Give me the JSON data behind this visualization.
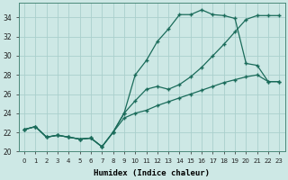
{
  "xlabel": "Humidex (Indice chaleur)",
  "ylabel": "",
  "xlim": [
    -0.5,
    23.5
  ],
  "ylim": [
    20,
    35
  ],
  "xticks": [
    0,
    1,
    2,
    3,
    4,
    5,
    6,
    7,
    8,
    9,
    10,
    11,
    12,
    13,
    14,
    15,
    16,
    17,
    18,
    19,
    20,
    21,
    22,
    23
  ],
  "yticks": [
    20,
    22,
    24,
    26,
    28,
    30,
    32,
    34
  ],
  "background_color": "#cde8e5",
  "grid_color": "#aacfcc",
  "line_color": "#1a6b5a",
  "line1_x": [
    0,
    1,
    2,
    3,
    4,
    5,
    6,
    7,
    8,
    9,
    10,
    11,
    12,
    13,
    14,
    15,
    16,
    17,
    18,
    19,
    20,
    21,
    22,
    23
  ],
  "line1_y": [
    22.3,
    22.6,
    21.5,
    21.7,
    21.5,
    21.3,
    21.4,
    20.5,
    22.0,
    24.0,
    28.0,
    29.5,
    31.5,
    32.8,
    34.3,
    34.3,
    34.8,
    34.3,
    34.2,
    33.9,
    29.2,
    29.0,
    27.3,
    27.3
  ],
  "line2_x": [
    0,
    1,
    2,
    3,
    4,
    5,
    6,
    7,
    8,
    9,
    10,
    11,
    12,
    13,
    14,
    15,
    16,
    17,
    18,
    19,
    20,
    21,
    22,
    23
  ],
  "line2_y": [
    22.3,
    22.6,
    21.5,
    21.7,
    21.5,
    21.3,
    21.4,
    20.5,
    22.0,
    24.0,
    25.3,
    26.5,
    26.8,
    26.5,
    27.0,
    27.8,
    28.8,
    30.0,
    31.2,
    32.5,
    33.8,
    34.2,
    34.2,
    34.2
  ],
  "line3_x": [
    0,
    1,
    2,
    3,
    4,
    5,
    6,
    7,
    8,
    9,
    10,
    11,
    12,
    13,
    14,
    15,
    16,
    17,
    18,
    19,
    20,
    21,
    22,
    23
  ],
  "line3_y": [
    22.3,
    22.6,
    21.5,
    21.7,
    21.5,
    21.3,
    21.4,
    20.5,
    22.0,
    23.5,
    24.0,
    24.3,
    24.8,
    25.2,
    25.6,
    26.0,
    26.4,
    26.8,
    27.2,
    27.5,
    27.8,
    28.0,
    27.3,
    27.3
  ]
}
